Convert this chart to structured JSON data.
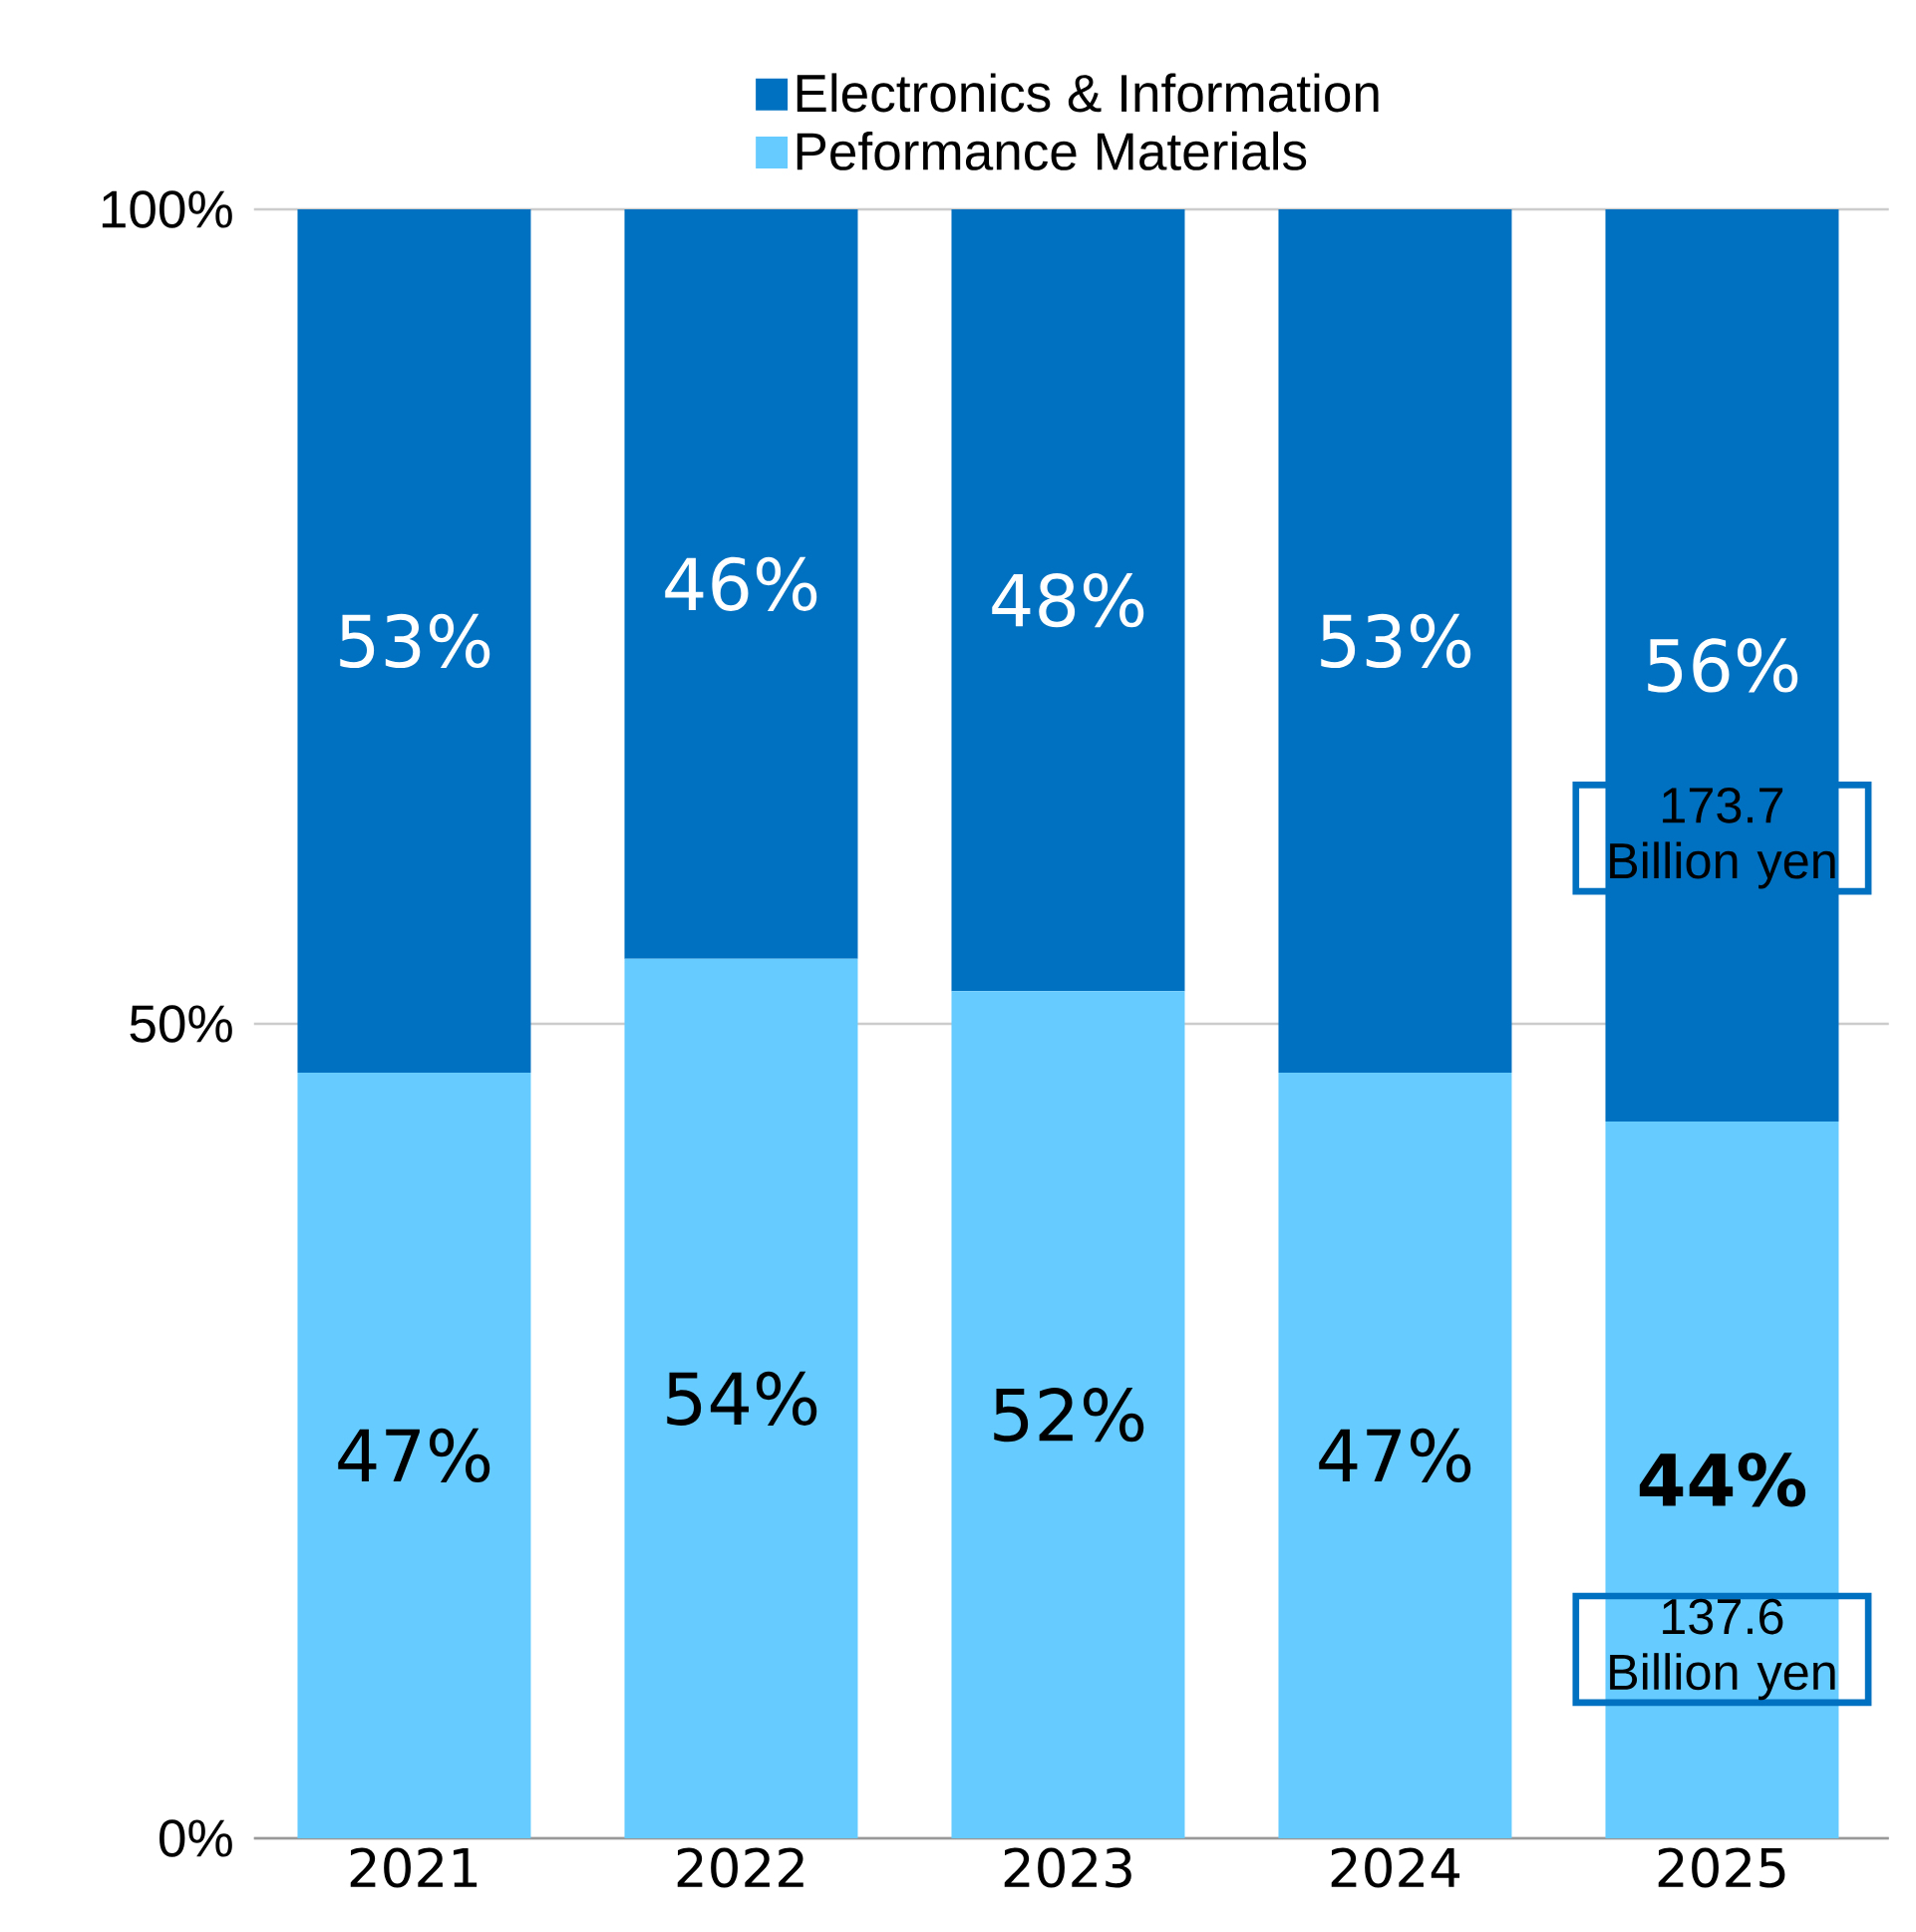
{
  "chart_data": {
    "type": "bar",
    "stacked": true,
    "categories": [
      "2021",
      "2022",
      "2023",
      "2024",
      "2025"
    ],
    "series": [
      {
        "name": "Peformance Materials",
        "color": "#66ccff",
        "values": [
          47,
          54,
          52,
          47,
          44
        ],
        "value_labels": [
          "47%",
          "54%",
          "52%",
          "47%",
          "**44%**"
        ]
      },
      {
        "name": "Electronics & Information",
        "color": "#0070c0",
        "values": [
          53,
          46,
          48,
          53,
          56
        ],
        "value_labels": [
          "53%",
          "46%",
          "48%",
          "53%",
          "56%"
        ]
      }
    ],
    "ylim": [
      0,
      100
    ],
    "yticks": [
      {
        "value": 0,
        "label": "0%"
      },
      {
        "value": 50,
        "label": "50%"
      },
      {
        "value": 100,
        "label": "100%"
      }
    ],
    "grid": "y",
    "legend": "top",
    "annotations": [
      "173.7 Billion yen",
      "137.6 Billion yen"
    ]
  }
}
